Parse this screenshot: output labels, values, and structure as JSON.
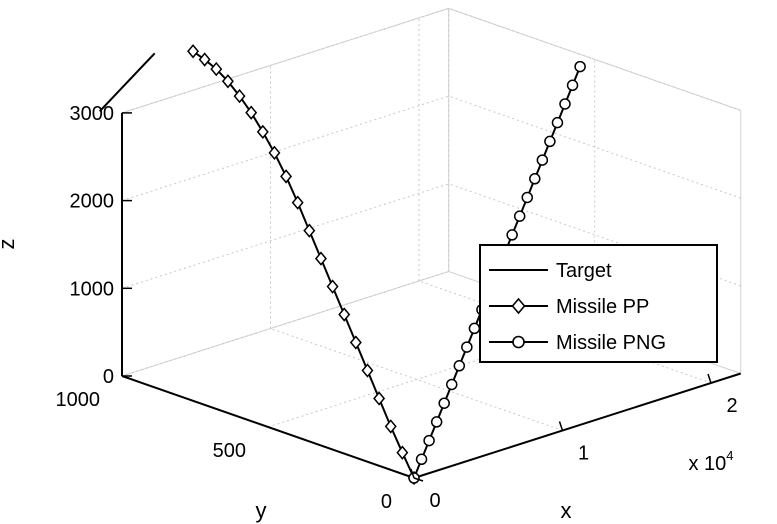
{
  "chart_data": {
    "type": "line",
    "view": "3d",
    "grid": true,
    "xlabel": "x",
    "ylabel": "y",
    "zlabel": "z",
    "x_exponent_label": "x 10",
    "x_exponent_power": "4",
    "xticks": [
      0,
      1,
      2
    ],
    "yticks": [
      0,
      500,
      1000
    ],
    "zticks": [
      0,
      1000,
      2000,
      3000
    ],
    "legend_placement": "right",
    "series": [
      {
        "name": "Target",
        "marker": "none",
        "points": [
          [
            -0.15,
            1000,
            3100
          ],
          [
            0.22,
            1000,
            3560
          ]
        ]
      },
      {
        "name": "Missile PP",
        "marker": "diamond",
        "points": [
          [
            0.0,
            0,
            0
          ],
          [
            0.02,
            50,
            220
          ],
          [
            0.04,
            100,
            450
          ],
          [
            0.06,
            150,
            700
          ],
          [
            0.08,
            200,
            950
          ],
          [
            0.1,
            250,
            1200
          ],
          [
            0.12,
            300,
            1450
          ],
          [
            0.14,
            350,
            1700
          ],
          [
            0.16,
            400,
            1950
          ],
          [
            0.18,
            450,
            2200
          ],
          [
            0.2,
            500,
            2450
          ],
          [
            0.22,
            550,
            2680
          ],
          [
            0.24,
            600,
            2880
          ],
          [
            0.26,
            650,
            3050
          ],
          [
            0.28,
            700,
            3200
          ],
          [
            0.3,
            750,
            3320
          ],
          [
            0.32,
            800,
            3420
          ],
          [
            0.34,
            850,
            3490
          ],
          [
            0.36,
            900,
            3530
          ],
          [
            0.38,
            950,
            3555
          ]
        ]
      },
      {
        "name": "Missile PNG",
        "marker": "circle",
        "points": [
          [
            0.0,
            0,
            0
          ],
          [
            0.1,
            25,
            130
          ],
          [
            0.2,
            50,
            260
          ],
          [
            0.3,
            75,
            390
          ],
          [
            0.4,
            100,
            520
          ],
          [
            0.5,
            125,
            650
          ],
          [
            0.6,
            150,
            780
          ],
          [
            0.7,
            175,
            910
          ],
          [
            0.8,
            200,
            1040
          ],
          [
            0.9,
            225,
            1170
          ],
          [
            1.0,
            250,
            1300
          ],
          [
            1.1,
            275,
            1430
          ],
          [
            1.2,
            300,
            1560
          ],
          [
            1.3,
            325,
            1690
          ],
          [
            1.4,
            350,
            1820
          ],
          [
            1.5,
            375,
            1950
          ],
          [
            1.6,
            400,
            2080
          ],
          [
            1.7,
            425,
            2210
          ],
          [
            1.8,
            450,
            2340
          ],
          [
            1.9,
            475,
            2470
          ],
          [
            2.0,
            500,
            2600
          ],
          [
            2.1,
            525,
            2730
          ],
          [
            2.2,
            550,
            2860
          ]
        ]
      }
    ]
  }
}
